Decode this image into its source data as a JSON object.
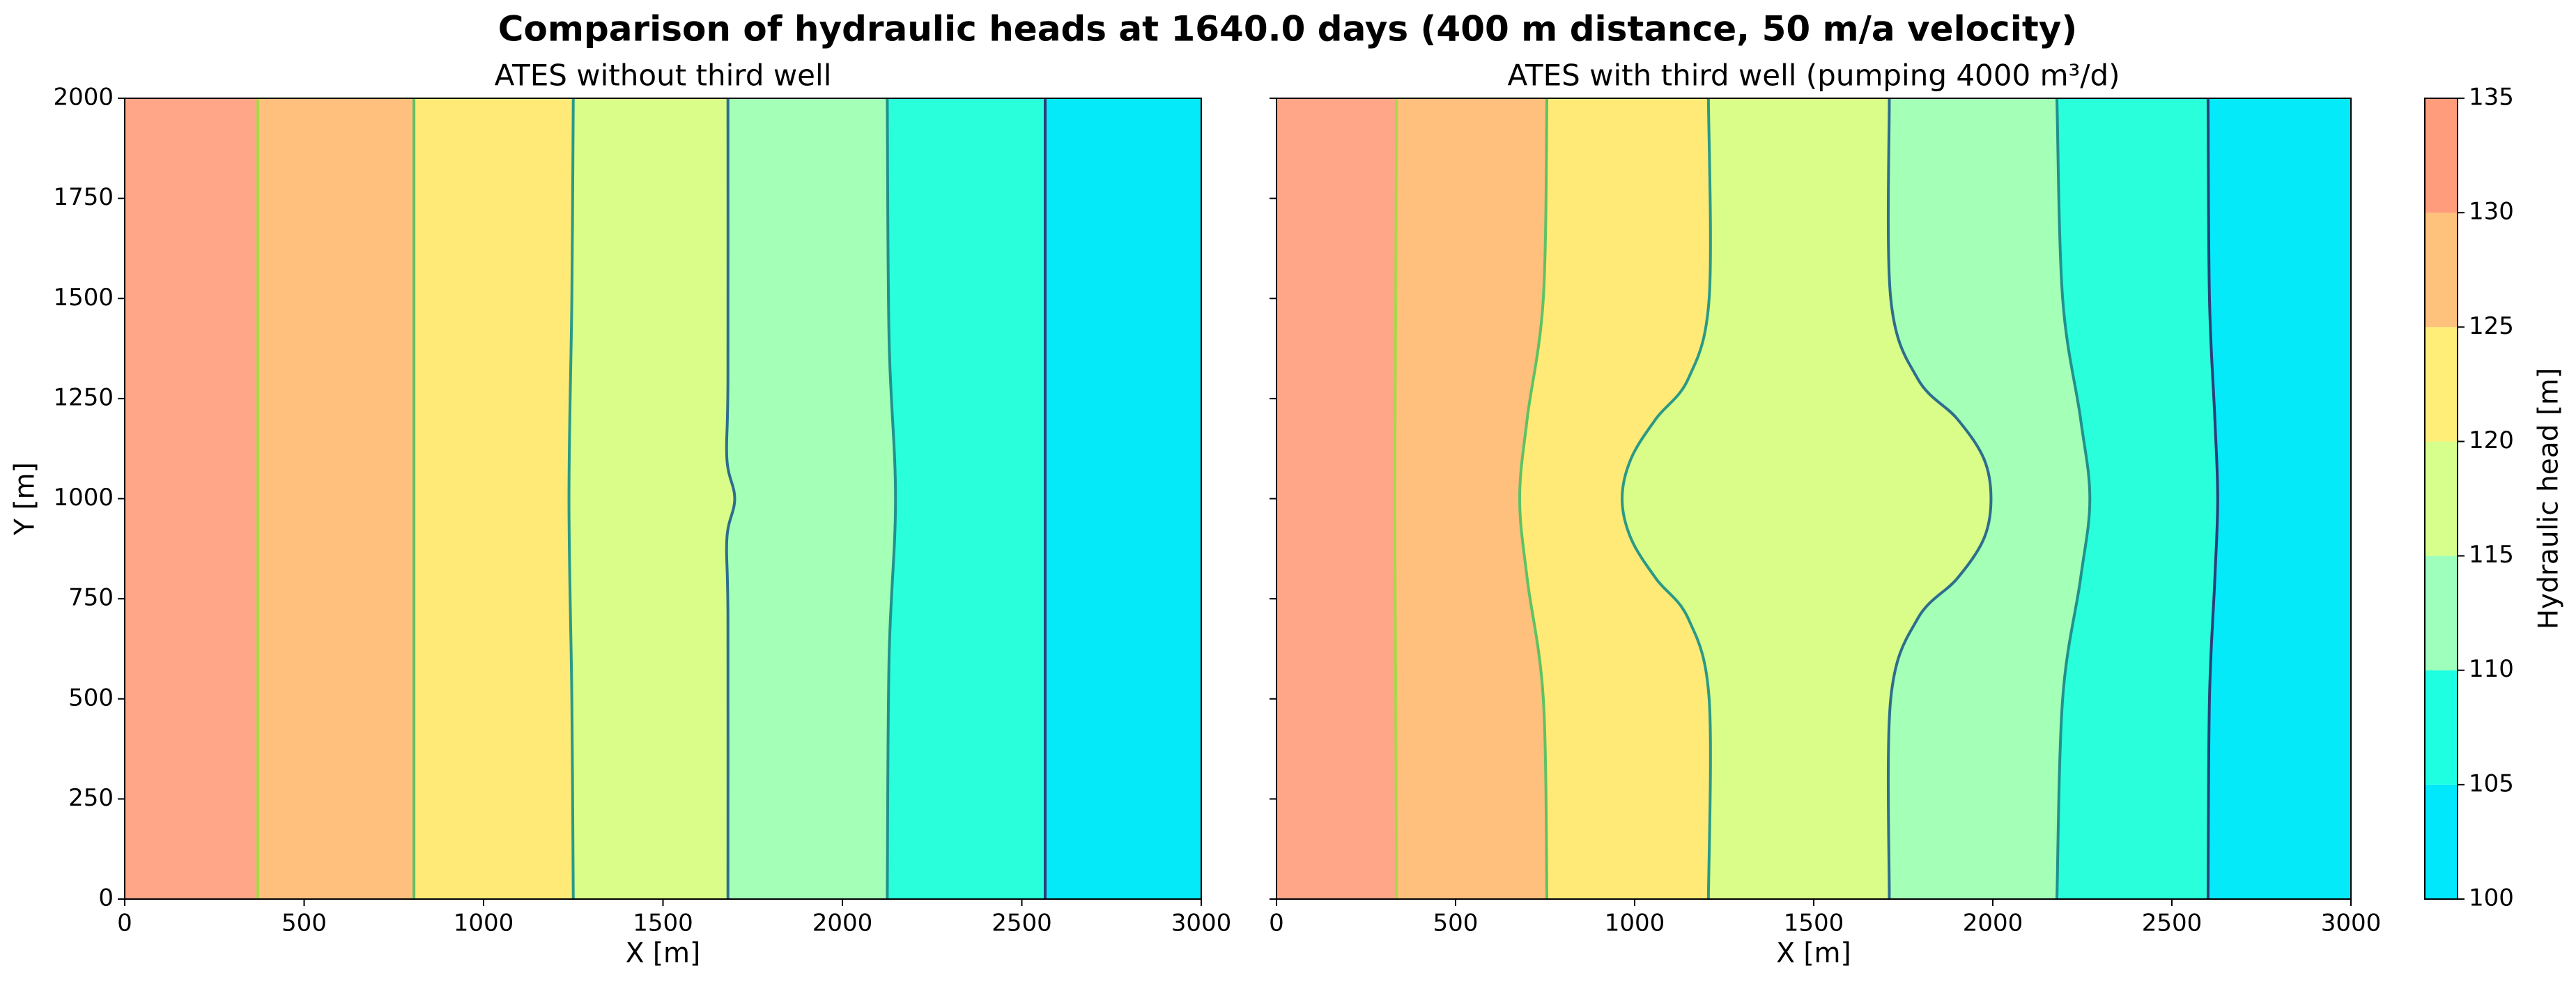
{
  "title": "Comparison of hydraulic heads at 1640.0 days (400 m distance, 50 m/a velocity)",
  "chart_data": [
    {
      "type": "contour",
      "title": "ATES without third well",
      "x_label": "X [m]",
      "y_label": "Y [m]",
      "xlim": [
        0,
        3000
      ],
      "ylim": [
        0,
        2000
      ],
      "xticks": [
        0,
        500,
        1000,
        1500,
        2000,
        2500,
        3000
      ],
      "yticks": [
        0,
        250,
        500,
        750,
        1000,
        1250,
        1500,
        1750,
        2000
      ],
      "contours": [
        {
          "level": 130,
          "color": "#a8d84a",
          "x": [
            371,
            371,
            371,
            371,
            371
          ],
          "y": [
            0,
            500,
            1000,
            1500,
            2000
          ]
        },
        {
          "level": 125,
          "color": "#5ec262",
          "x": [
            806,
            806,
            806,
            806,
            806
          ],
          "y": [
            0,
            500,
            1000,
            1500,
            2000
          ]
        },
        {
          "level": 120,
          "color": "#2a9a86",
          "x": [
            1250,
            1246,
            1238,
            1246,
            1250
          ],
          "y": [
            0,
            500,
            1000,
            1500,
            2000
          ]
        },
        {
          "level": 115,
          "color": "#2d6e8e",
          "x": [
            1681,
            1681,
            1678,
            1700,
            1678,
            1681,
            1681
          ],
          "y": [
            0,
            700,
            900,
            1000,
            1100,
            1300,
            2000
          ]
        },
        {
          "level": 110,
          "color": "#21918c",
          "x": [
            2125,
            2130,
            2148,
            2130,
            2125
          ],
          "y": [
            0,
            600,
            1000,
            1400,
            2000
          ]
        },
        {
          "level": 105,
          "color": "#2c3e7a",
          "x": [
            2565,
            2565,
            2565,
            2565,
            2565
          ],
          "y": [
            0,
            500,
            1000,
            1500,
            2000
          ]
        }
      ]
    },
    {
      "type": "contour",
      "title": "ATES with third well (pumping 4000 m³/d)",
      "x_label": "X [m]",
      "xlim": [
        0,
        3000
      ],
      "ylim": [
        0,
        2000
      ],
      "xticks": [
        0,
        500,
        1000,
        1500,
        2000,
        2500,
        3000
      ],
      "yticks": [
        0,
        250,
        500,
        750,
        1000,
        1250,
        1500,
        1750,
        2000
      ],
      "contours": [
        {
          "level": 130,
          "color": "#a8d84a",
          "x": [
            335,
            333,
            330,
            333,
            335
          ],
          "y": [
            0,
            500,
            1000,
            1500,
            2000
          ]
        },
        {
          "level": 125,
          "color": "#5ec262",
          "x": [
            755,
            745,
            700,
            679,
            700,
            745,
            755
          ],
          "y": [
            0,
            500,
            800,
            1000,
            1200,
            1500,
            2000
          ]
        },
        {
          "level": 120,
          "color": "#2a9a86",
          "x": [
            1206,
            1208,
            1150,
            1060,
            990,
            965,
            990,
            1060,
            1150,
            1208,
            1206
          ],
          "y": [
            0,
            500,
            700,
            800,
            900,
            1000,
            1100,
            1200,
            1300,
            1500,
            2000
          ]
        },
        {
          "level": 115,
          "color": "#2d6e8e",
          "x": [
            1711,
            1715,
            1790,
            1900,
            1975,
            1995,
            1975,
            1900,
            1790,
            1715,
            1711
          ],
          "y": [
            0,
            500,
            700,
            800,
            900,
            1000,
            1100,
            1200,
            1300,
            1500,
            2000
          ]
        },
        {
          "level": 110,
          "color": "#21918c",
          "x": [
            2179,
            2195,
            2245,
            2271,
            2245,
            2195,
            2179
          ],
          "y": [
            0,
            500,
            800,
            1000,
            1200,
            1500,
            2000
          ]
        },
        {
          "level": 105,
          "color": "#2c3e7a",
          "x": [
            2601,
            2605,
            2620,
            2628,
            2620,
            2605,
            2601
          ],
          "y": [
            0,
            500,
            800,
            1000,
            1200,
            1500,
            2000
          ]
        }
      ]
    }
  ],
  "colorbar": {
    "label": "Hydraulic head [m]",
    "levels": [
      100,
      105,
      110,
      115,
      120,
      125,
      130,
      135
    ],
    "colors": [
      "#00e8fc",
      "#1dffe0",
      "#9dffbb",
      "#d6ff8c",
      "#ffee77",
      "#ffc27c",
      "#ff9c7c"
    ]
  }
}
